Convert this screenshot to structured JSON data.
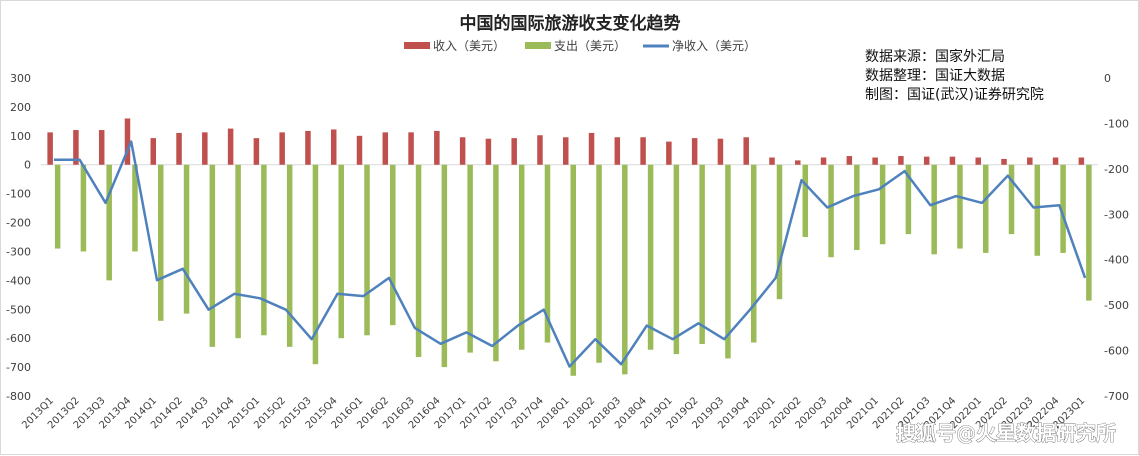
{
  "chart_data": {
    "type": "bar",
    "title": "中国的国际旅游收支变化趋势",
    "categories": [
      "2013Q1",
      "2013Q2",
      "2013Q3",
      "2013Q4",
      "2014Q1",
      "2014Q2",
      "2014Q3",
      "2014Q4",
      "2015Q1",
      "2015Q2",
      "2015Q3",
      "2015Q4",
      "2016Q1",
      "2016Q2",
      "2016Q3",
      "2016Q4",
      "2017Q1",
      "2017Q2",
      "2017Q3",
      "2017Q4",
      "2018Q1",
      "2018Q2",
      "2018Q3",
      "2018Q4",
      "2019Q1",
      "2019Q2",
      "2019Q3",
      "2019Q4",
      "2020Q1",
      "2020Q2",
      "2020Q3",
      "2020Q4",
      "2021Q1",
      "2021Q2",
      "2021Q3",
      "2021Q4",
      "2022Q1",
      "2022Q2",
      "2022Q3",
      "2022Q4",
      "2023Q1"
    ],
    "series": [
      {
        "name": "收入（美元）",
        "type": "bar",
        "axis": "left",
        "color": "#c0504d",
        "values": [
          112,
          120,
          120,
          160,
          92,
          110,
          112,
          125,
          92,
          112,
          117,
          122,
          100,
          112,
          112,
          117,
          95,
          90,
          92,
          102,
          95,
          110,
          95,
          95,
          80,
          92,
          90,
          95,
          25,
          15,
          25,
          30,
          25,
          30,
          28,
          28,
          25,
          20,
          25,
          25,
          25
        ]
      },
      {
        "name": "支出（美元）",
        "type": "bar",
        "axis": "left",
        "color": "#9bbb59",
        "values": [
          -290,
          -300,
          -400,
          -300,
          -540,
          -515,
          -630,
          -600,
          -590,
          -630,
          -690,
          -600,
          -590,
          -555,
          -665,
          -700,
          -650,
          -680,
          -640,
          -615,
          -730,
          -685,
          -725,
          -640,
          -655,
          -620,
          -670,
          -615,
          -465,
          -250,
          -320,
          -295,
          -275,
          -240,
          -310,
          -290,
          -305,
          -240,
          -315,
          -305,
          -470
        ]
      },
      {
        "name": "净收入（美元）",
        "type": "line",
        "axis": "right",
        "color": "#4f81bd",
        "values": [
          -180,
          -180,
          -275,
          -140,
          -445,
          -420,
          -510,
          -475,
          -485,
          -510,
          -575,
          -475,
          -480,
          -440,
          -550,
          -585,
          -560,
          -590,
          -545,
          -510,
          -635,
          -575,
          -630,
          -545,
          -575,
          -540,
          -575,
          -510,
          -440,
          -225,
          -285,
          -260,
          -245,
          -205,
          -280,
          -260,
          -275,
          -215,
          -285,
          -280,
          -440
        ]
      }
    ],
    "y_left": {
      "min": -800,
      "max": 300,
      "step": 100
    },
    "y_right": {
      "min": -700,
      "max": 0,
      "step": 100
    },
    "grid": false,
    "legend_position": "top"
  },
  "notes": [
    "数据来源：国家外汇局",
    "数据整理：国证大数据",
    "制图：国证(武汉)证券研究院"
  ],
  "watermark": "搜狐号@火星数据研究所"
}
